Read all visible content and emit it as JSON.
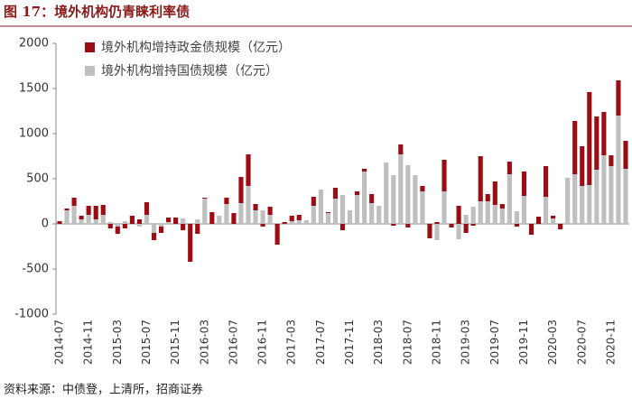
{
  "chart_data": {
    "type": "stacked_bar",
    "title": "图 17：境外机构仍青睐利率债",
    "source": "资料来源：中债登，上清所，招商证券",
    "categories": [
      "2014-07",
      null,
      null,
      null,
      "2014-11",
      null,
      null,
      null,
      "2015-03",
      null,
      null,
      null,
      "2015-07",
      null,
      null,
      null,
      "2015-11",
      null,
      null,
      null,
      "2016-03",
      null,
      null,
      null,
      "2016-07",
      null,
      null,
      null,
      "2016-11",
      null,
      null,
      null,
      "2017-03",
      null,
      null,
      null,
      "2017-07",
      null,
      null,
      null,
      "2017-11",
      null,
      null,
      null,
      "2018-03",
      null,
      null,
      null,
      "2018-07",
      null,
      null,
      null,
      "2018-11",
      null,
      null,
      null,
      "2019-03",
      null,
      null,
      null,
      "2019-07",
      null,
      null,
      null,
      "2019-11",
      null,
      null,
      null,
      "2020-03",
      null,
      null,
      null,
      "2020-07",
      null,
      null,
      null,
      "2020-11",
      null,
      null
    ],
    "series": [
      {
        "name": "境外机构增持国债规模（亿元）",
        "color": "#bfbfbf",
        "values": [
          0,
          150,
          200,
          50,
          100,
          50,
          100,
          20,
          -30,
          30,
          0,
          -30,
          100,
          -100,
          -30,
          20,
          0,
          60,
          0,
          50,
          280,
          0,
          90,
          220,
          0,
          230,
          420,
          150,
          150,
          100,
          0,
          0,
          30,
          40,
          40,
          200,
          380,
          120,
          280,
          320,
          150,
          320,
          580,
          230,
          200,
          680,
          540,
          770,
          650,
          540,
          360,
          0,
          -180,
          360,
          0,
          -170,
          100,
          190,
          250,
          250,
          210,
          170,
          550,
          140,
          310,
          0,
          0,
          300,
          60,
          0,
          510,
          550,
          420,
          430,
          600,
          760,
          640,
          1200,
          610
        ]
      },
      {
        "name": "境外机构增持政金债规模（亿元）",
        "color": "#9b0d14",
        "values": [
          30,
          20,
          90,
          40,
          100,
          150,
          110,
          -50,
          -80,
          -50,
          90,
          50,
          140,
          -80,
          -70,
          50,
          70,
          -70,
          -420,
          -110,
          10,
          130,
          0,
          70,
          120,
          290,
          350,
          70,
          -30,
          90,
          -230,
          20,
          60,
          60,
          0,
          100,
          0,
          10,
          120,
          -70,
          0,
          40,
          30,
          100,
          0,
          0,
          -20,
          110,
          -40,
          0,
          60,
          -160,
          20,
          350,
          -40,
          200,
          -100,
          -20,
          500,
          80,
          260,
          50,
          140,
          -30,
          270,
          -120,
          80,
          340,
          30,
          -60,
          0,
          590,
          440,
          1030,
          590,
          480,
          120,
          390,
          310
        ]
      }
    ],
    "ylim": [
      -1000,
      2000
    ],
    "yticks": [
      -1000,
      -500,
      0,
      500,
      1000,
      1500,
      2000
    ]
  }
}
